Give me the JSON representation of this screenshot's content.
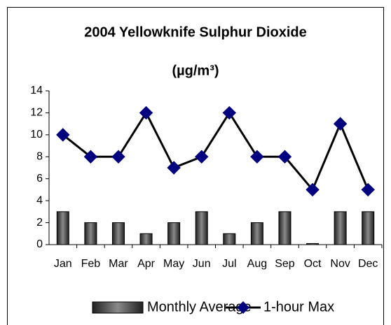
{
  "chart_data": {
    "type": "bar-line",
    "title": "2004 Yellowknife Sulphur Dioxide",
    "subtitle": "(µg/m³)",
    "categories": [
      "Jan",
      "Feb",
      "Mar",
      "Apr",
      "May",
      "Jun",
      "Jul",
      "Aug",
      "Sep",
      "Oct",
      "Nov",
      "Dec"
    ],
    "series": [
      {
        "name": "Monthly Average",
        "type": "bar",
        "color": "#404040",
        "values": [
          3,
          2,
          2,
          1,
          2,
          3,
          1,
          2,
          3,
          0.1,
          3,
          3
        ]
      },
      {
        "name": "1-hour Max",
        "type": "line",
        "color": "#000080",
        "values": [
          10,
          8,
          8,
          12,
          7,
          8,
          12,
          8,
          8,
          5,
          11,
          5
        ]
      }
    ],
    "ylim": [
      0,
      14
    ],
    "yticks": [
      0,
      2,
      4,
      6,
      8,
      10,
      12,
      14
    ],
    "grid": false,
    "legend": "bottom"
  }
}
